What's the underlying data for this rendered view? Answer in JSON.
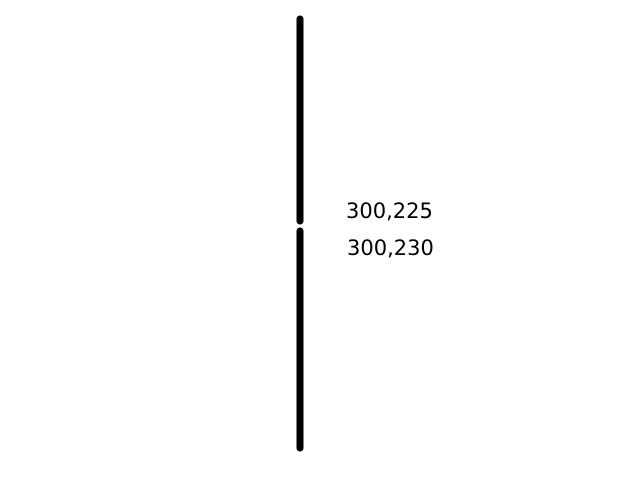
{
  "labels": {
    "upper_point": "300,225",
    "lower_point": "300,230"
  },
  "colors": {
    "background": "#ffffff",
    "line": "#000000",
    "text": "#000000"
  }
}
